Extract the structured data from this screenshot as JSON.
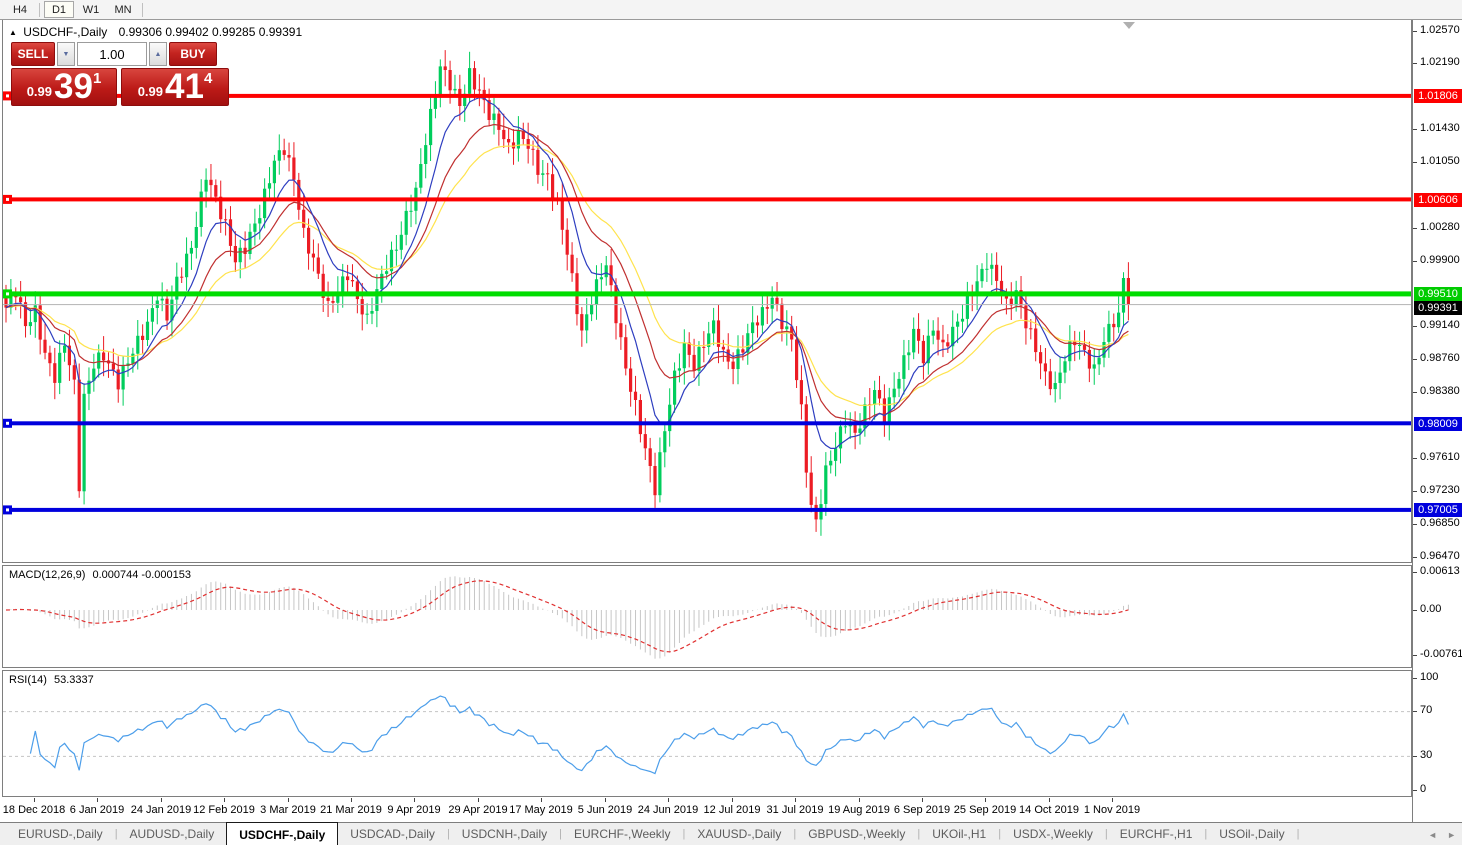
{
  "toolbar": {
    "timeframes": [
      {
        "label": "H4",
        "active": false
      },
      {
        "label": "D1",
        "active": true
      },
      {
        "label": "W1",
        "active": false
      },
      {
        "label": "MN",
        "active": false
      }
    ]
  },
  "chart_header": {
    "collapse_icon": "▲",
    "title": "USDCHF-,Daily",
    "ohlc": "0.99306 0.99402 0.99285 0.99391"
  },
  "trade_panel": {
    "sell_label": "SELL",
    "buy_label": "BUY",
    "volume": "1.00",
    "spinner_down_icon": "▼",
    "spinner_up_icon": "▲",
    "sell_price": {
      "prefix": "0.99",
      "big": "39",
      "sup": "1"
    },
    "buy_price": {
      "prefix": "0.99",
      "big": "41",
      "sup": "4"
    }
  },
  "price_axis": {
    "ticks": [
      "1.02570",
      "1.02190",
      "1.01430",
      "1.01050",
      "1.00280",
      "0.99900",
      "0.99140",
      "0.98760",
      "0.98380",
      "0.97610",
      "0.97230",
      "0.96850",
      "0.96470"
    ]
  },
  "hlines": [
    {
      "price": 1.01806,
      "label": "1.01806",
      "color": "#fe0000",
      "thickness": 4
    },
    {
      "price": 1.00606,
      "label": "1.00606",
      "color": "#fe0000",
      "thickness": 4
    },
    {
      "price": 0.9951,
      "label": "0.99510",
      "color": "#00cc00",
      "line_color": "#00dd00",
      "thickness": 5
    },
    {
      "price": 0.98009,
      "label": "0.98009",
      "color": "#0000dd",
      "thickness": 4
    },
    {
      "price": 0.97005,
      "label": "0.97005",
      "color": "#0000dd",
      "thickness": 4
    }
  ],
  "current_price": {
    "value": 0.99391,
    "label": "0.99391",
    "line_color": "#b4b4b4",
    "badge_bg": "#000000"
  },
  "time_axis": {
    "labels": [
      "18 Dec 2018",
      "6 Jan 2019",
      "24 Jan 2019",
      "12 Feb 2019",
      "3 Mar 2019",
      "21 Mar 2019",
      "9 Apr 2019",
      "29 Apr 2019",
      "17 May 2019",
      "5 Jun 2019",
      "24 Jun 2019",
      "12 Jul 2019",
      "31 Jul 2019",
      "19 Aug 2019",
      "6 Sep 2019",
      "25 Sep 2019",
      "14 Oct 2019",
      "1 Nov 2019"
    ],
    "indices": [
      6,
      19,
      32,
      45,
      58,
      71,
      84,
      97,
      110,
      123,
      136,
      149,
      162,
      175,
      188,
      201,
      214,
      227
    ]
  },
  "indicators": {
    "macd": {
      "label": "MACD(12,26,9)",
      "values": "0.000744 -0.000153",
      "axis": [
        {
          "v": 0.00613,
          "label": "0.00613"
        },
        {
          "v": 0,
          "label": "0.00"
        },
        {
          "v": -0.007612,
          "label": "-0.007612"
        }
      ],
      "fast": 12,
      "slow": 26,
      "signal": 9,
      "histogram_color": "#c6c6c6",
      "signal_color": "#e03131"
    },
    "rsi": {
      "label": "RSI(14)",
      "value": "53.3337",
      "period": 14,
      "axis": [
        {
          "v": 100,
          "label": "100"
        },
        {
          "v": 70,
          "label": "70"
        },
        {
          "v": 30,
          "label": "30"
        },
        {
          "v": 0,
          "label": "0"
        }
      ],
      "levels": [
        70,
        30
      ],
      "line_color": "#4c9eea",
      "level_color": "#c4c4c4"
    }
  },
  "tabs": {
    "items": [
      {
        "label": "EURUSD-,Daily",
        "active": false
      },
      {
        "label": "AUDUSD-,Daily",
        "active": false
      },
      {
        "label": "USDCHF-,Daily",
        "active": true
      },
      {
        "label": "USDCAD-,Daily",
        "active": false
      },
      {
        "label": "USDCNH-,Daily",
        "active": false
      },
      {
        "label": "EURCHF-,Weekly",
        "active": false
      },
      {
        "label": "XAUUSD-,Daily",
        "active": false
      },
      {
        "label": "GBPUSD-,Weekly",
        "active": false
      },
      {
        "label": "UKOil-,H1",
        "active": false
      },
      {
        "label": "USDX-,Weekly",
        "active": false
      },
      {
        "label": "EURCHF-,H1",
        "active": false
      },
      {
        "label": "USOil-,Daily",
        "active": false
      }
    ],
    "nav_left": "◄",
    "nav_right": "►"
  },
  "chart_data": {
    "type": "candlestick",
    "symbol": "USDCHF-",
    "timeframe": "Daily",
    "ohlc_current": {
      "open": 0.99306,
      "high": 0.99402,
      "low": 0.99285,
      "close": 0.99391
    },
    "ylim": [
      0.9647,
      1.0257
    ],
    "count": 231,
    "bull_color": "#00cd5c",
    "bear_color": "#ec1c24",
    "ma": [
      {
        "period": 9,
        "color": "#2e3ec0"
      },
      {
        "period": 18,
        "color": "#c03030"
      },
      {
        "period": 28,
        "color": "#ffe34d"
      }
    ],
    "synth": {
      "wiggle_amp": 0.0008,
      "wiggle_freq": 2.4,
      "wick_base": 0.0006,
      "wick_amp": 0.0013
    },
    "close_anchors": [
      [
        0,
        0.9935
      ],
      [
        2,
        0.9955
      ],
      [
        4,
        0.9915
      ],
      [
        6,
        0.993
      ],
      [
        8,
        0.988
      ],
      [
        10,
        0.9855
      ],
      [
        12,
        0.9895
      ],
      [
        14,
        0.9845
      ],
      [
        15,
        0.973
      ],
      [
        16,
        0.983
      ],
      [
        18,
        0.987
      ],
      [
        20,
        0.988
      ],
      [
        23,
        0.9848
      ],
      [
        26,
        0.9885
      ],
      [
        29,
        0.9915
      ],
      [
        31,
        0.995
      ],
      [
        33,
        0.9925
      ],
      [
        35,
        0.9965
      ],
      [
        38,
        1.0005
      ],
      [
        41,
        1.009
      ],
      [
        43,
        1.006
      ],
      [
        45,
        1.003
      ],
      [
        47,
        0.999
      ],
      [
        49,
        1.0005
      ],
      [
        52,
        1.0045
      ],
      [
        55,
        1.0105
      ],
      [
        57,
        1.012
      ],
      [
        59,
        1.0085
      ],
      [
        61,
        1.002
      ],
      [
        63,
        0.999
      ],
      [
        66,
        0.9935
      ],
      [
        68,
        0.9955
      ],
      [
        70,
        0.9975
      ],
      [
        72,
        0.9945
      ],
      [
        74,
        0.992
      ],
      [
        76,
        0.9955
      ],
      [
        78,
        0.9985
      ],
      [
        80,
        1.0005
      ],
      [
        82,
        1.004
      ],
      [
        84,
        1.007
      ],
      [
        86,
        1.013
      ],
      [
        88,
        1.0185
      ],
      [
        89,
        1.0215
      ],
      [
        91,
        1.0195
      ],
      [
        93,
        1.017
      ],
      [
        95,
        1.0205
      ],
      [
        97,
        1.0185
      ],
      [
        99,
        1.016
      ],
      [
        101,
        1.0145
      ],
      [
        103,
        1.012
      ],
      [
        105,
        1.0135
      ],
      [
        107,
        1.0125
      ],
      [
        109,
        1.0095
      ],
      [
        111,
        1.0085
      ],
      [
        113,
        1.0055
      ],
      [
        115,
        1.0
      ],
      [
        117,
        0.9935
      ],
      [
        118,
        0.9905
      ],
      [
        120,
        0.9945
      ],
      [
        122,
        0.9975
      ],
      [
        123,
        0.9985
      ],
      [
        125,
        0.9925
      ],
      [
        127,
        0.9865
      ],
      [
        129,
        0.982
      ],
      [
        131,
        0.977
      ],
      [
        133,
        0.9725
      ],
      [
        135,
        0.9795
      ],
      [
        137,
        0.9855
      ],
      [
        139,
        0.989
      ],
      [
        141,
        0.9868
      ],
      [
        143,
        0.9895
      ],
      [
        145,
        0.9915
      ],
      [
        147,
        0.988
      ],
      [
        149,
        0.9868
      ],
      [
        151,
        0.989
      ],
      [
        153,
        0.9915
      ],
      [
        155,
        0.9928
      ],
      [
        157,
        0.9948
      ],
      [
        159,
        0.9918
      ],
      [
        161,
        0.9898
      ],
      [
        163,
        0.9815
      ],
      [
        164,
        0.975
      ],
      [
        165,
        0.9705
      ],
      [
        166,
        0.9685
      ],
      [
        168,
        0.9745
      ],
      [
        170,
        0.9775
      ],
      [
        172,
        0.9805
      ],
      [
        174,
        0.9788
      ],
      [
        176,
        0.9815
      ],
      [
        178,
        0.984
      ],
      [
        180,
        0.9808
      ],
      [
        182,
        0.9842
      ],
      [
        184,
        0.9872
      ],
      [
        186,
        0.9908
      ],
      [
        188,
        0.9878
      ],
      [
        190,
        0.9912
      ],
      [
        192,
        0.9888
      ],
      [
        194,
        0.9908
      ],
      [
        196,
        0.9928
      ],
      [
        198,
        0.9955
      ],
      [
        200,
        0.9975
      ],
      [
        201,
        0.9988
      ],
      [
        203,
        0.9968
      ],
      [
        205,
        0.9938
      ],
      [
        207,
        0.9952
      ],
      [
        209,
        0.9918
      ],
      [
        211,
        0.9888
      ],
      [
        213,
        0.9855
      ],
      [
        215,
        0.9842
      ],
      [
        217,
        0.9878
      ],
      [
        219,
        0.9898
      ],
      [
        221,
        0.9882
      ],
      [
        223,
        0.9862
      ],
      [
        225,
        0.9898
      ],
      [
        227,
        0.992
      ],
      [
        228,
        0.9925
      ],
      [
        229,
        0.9968
      ],
      [
        230,
        0.9939
      ]
    ]
  }
}
